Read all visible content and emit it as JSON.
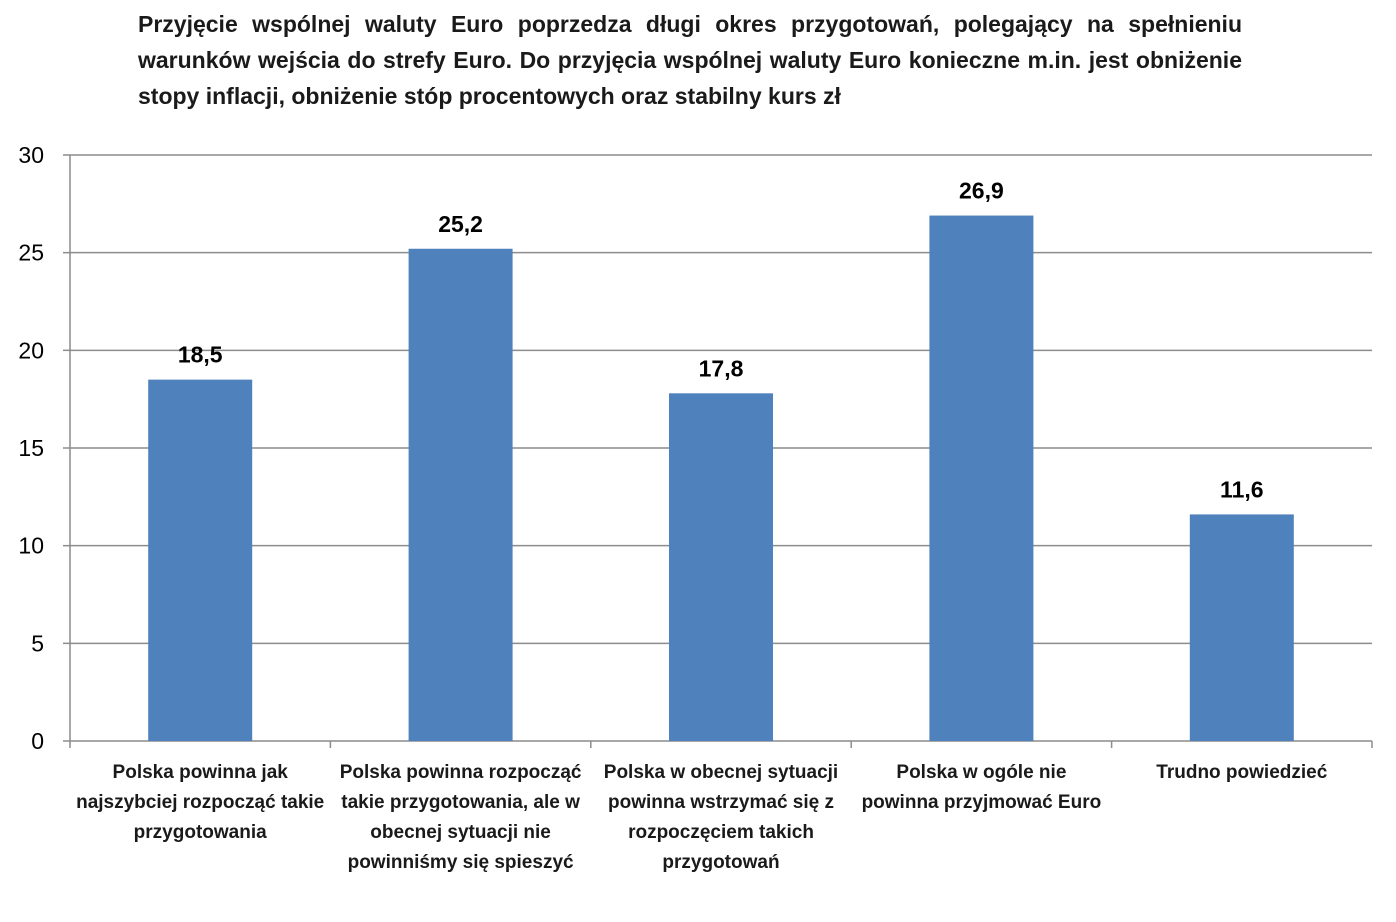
{
  "chart_data": {
    "type": "bar",
    "title": "Przyjęcie wspólnej  waluty Euro poprzedza długi okres przygotowań, polegający na spełnieniu warunków wejścia do strefy Euro. Do przyjęcia wspólnej waluty Euro konieczne m.in. jest obniżenie stopy inflacji, obniżenie stóp procentowych oraz stabilny kurs zł",
    "categories": [
      "Polska powinna jak najszybciej rozpocząć takie przygotowania",
      "Polska powinna rozpocząć takie przygotowania, ale w obecnej sytuacji nie powinniśmy się spieszyć",
      "Polska w obecnej sytuacji powinna wstrzymać się z rozpoczęciem takich przygotowań",
      "Polska w ogóle nie powinna przyjmować Euro",
      "Trudno powiedzieć"
    ],
    "values": [
      18.5,
      25.2,
      17.8,
      26.9,
      11.6
    ],
    "value_labels": [
      "18,5",
      "25,2",
      "17,8",
      "26,9",
      "11,6"
    ],
    "ylim": [
      0,
      30
    ],
    "yticks": [
      0,
      5,
      10,
      15,
      20,
      25,
      30
    ],
    "xlabel": "",
    "ylabel": "",
    "grid": true,
    "bar_color": "#4f81bd",
    "grid_color": "#8c8c8c"
  }
}
